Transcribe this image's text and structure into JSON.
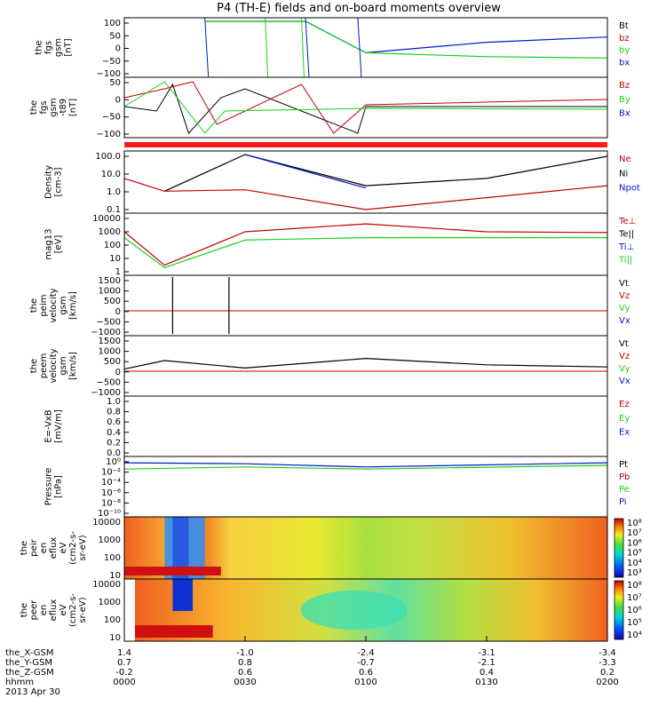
{
  "title": "P4 (TH-E) fields and on-board moments overview",
  "colors": {
    "black": "#000000",
    "red": "#c00000",
    "green": "#18d018",
    "blue": "#0018c8",
    "band": "#ff1a1a"
  },
  "panels": [
    {
      "id": "fgs",
      "ylabel": [
        "the",
        "fgs",
        "gsm",
        "[nT]"
      ],
      "ticks": [
        "100",
        "50",
        "0",
        "−50",
        "−100"
      ],
      "legend": [
        "Bt",
        "bz",
        "by",
        "bx"
      ],
      "legend_colors": [
        "black",
        "red",
        "green",
        "blue"
      ]
    },
    {
      "id": "fgs_t89",
      "ylabel": [
        "the",
        "fgs",
        "gsm",
        "-t89",
        "[nT]"
      ],
      "ticks": [
        "50",
        "0",
        "−50",
        "−100"
      ],
      "legend": [
        "Bz",
        "By",
        "Bx"
      ],
      "legend_colors": [
        "red",
        "green",
        "blue"
      ]
    },
    {
      "id": "density",
      "ylabel": [
        "Density",
        "[cm-3]"
      ],
      "ticks": [
        "100.0",
        "10.0",
        "1.0",
        "0.1"
      ],
      "legend": [
        "Ne",
        "Ni",
        "Npot"
      ],
      "legend_colors": [
        "red",
        "black",
        "blue"
      ]
    },
    {
      "id": "temp",
      "ylabel": [
        "mag13",
        "[eV]"
      ],
      "ticks": [
        "10000",
        "1000",
        "100",
        "10",
        "1"
      ],
      "legend": [
        "Te⊥",
        "Te||",
        "Ti⊥",
        "Ti||"
      ],
      "legend_colors": [
        "red",
        "black",
        "blue",
        "green"
      ]
    },
    {
      "id": "peim_v",
      "ylabel": [
        "the",
        "peim",
        "velocity",
        "gsm",
        "[km/s]"
      ],
      "ticks": [
        "1500",
        "1000",
        "500",
        "0",
        "−500",
        "−1000"
      ],
      "legend": [
        "Vt",
        "Vz",
        "Vy",
        "Vx"
      ],
      "legend_colors": [
        "black",
        "red",
        "green",
        "blue"
      ]
    },
    {
      "id": "peem_v",
      "ylabel": [
        "the",
        "peem",
        "velocity",
        "gsm",
        "[km/s]"
      ],
      "ticks": [
        "1500",
        "1000",
        "500",
        "0",
        "−500",
        "−1000"
      ],
      "legend": [
        "Vt",
        "Vz",
        "Vy",
        "Vx"
      ],
      "legend_colors": [
        "black",
        "red",
        "green",
        "blue"
      ]
    },
    {
      "id": "efield",
      "ylabel": [
        "E=-VxB",
        "[mV/m]"
      ],
      "ticks": [
        "1.0",
        "0.8",
        "0.6",
        "0.4",
        "0.2",
        "0.0"
      ],
      "legend": [
        "Ez",
        "Ey",
        "Ex"
      ],
      "legend_colors": [
        "red",
        "green",
        "blue"
      ]
    },
    {
      "id": "pressure",
      "ylabel": [
        "Pressure",
        "[nPa]"
      ],
      "ticks": [
        "10⁰",
        "10⁻²",
        "10⁻⁴",
        "10⁻⁶",
        "10⁻⁸",
        "10⁻¹⁰"
      ],
      "legend": [
        "Pt",
        "Pb",
        "Pe",
        "Pi"
      ],
      "legend_colors": [
        "black",
        "red",
        "green",
        "blue"
      ]
    },
    {
      "id": "peir",
      "ylabel": [
        "the",
        "peir",
        "en",
        "eflux",
        "eV",
        "(cm2-s-",
        "sr-eV)"
      ],
      "ticks": [
        "10000",
        "1000",
        "100",
        "10"
      ],
      "colorbar": [
        "10⁸",
        "10⁷",
        "10⁶",
        "10⁵",
        "10⁴",
        "10³"
      ]
    },
    {
      "id": "peer",
      "ylabel": [
        "the",
        "peer",
        "en",
        "eflux",
        "eV",
        "(cm2-s-",
        "sr-eV)"
      ],
      "ticks": [
        "10000",
        "1000",
        "100",
        "10"
      ],
      "colorbar": [
        "10⁸",
        "10⁷",
        "10⁶",
        "10⁵",
        "10⁴"
      ]
    }
  ],
  "ephemeris": {
    "labels": [
      "the_X-GSM",
      "the_Y-GSM",
      "the_Z-GSM",
      "hhmm",
      "2013 Apr 30"
    ],
    "x_gsm": [
      "1.4",
      "-1.0",
      "-2.4",
      "-3.1",
      "-3.4"
    ],
    "y_gsm": [
      "0.7",
      "0.8",
      "-0.7",
      "-2.1",
      "-3.3"
    ],
    "z_gsm": [
      "-0.2",
      "0.6",
      "0.6",
      "0.4",
      "0.2"
    ],
    "hhmm": [
      "0000",
      "0030",
      "0100",
      "0130",
      "0200"
    ]
  },
  "chart_data": {
    "type": "line",
    "title": "P4 (TH-E) fields and on-board moments overview",
    "xlabel": "hhmm",
    "x_ticks": [
      "0000",
      "0030",
      "0100",
      "0130",
      "0200"
    ],
    "x_range": [
      "0000",
      "0200"
    ],
    "panels": [
      {
        "name": "the fgs gsm [nT]",
        "ylim": [
          -100,
          100
        ],
        "series": [
          {
            "name": "bx",
            "x": [
              "0020",
              "0035",
              "0045",
              "0100",
              "0130",
              "0200"
            ],
            "values": [
              100,
              100,
              100,
              -20,
              20,
              40
            ]
          },
          {
            "name": "by",
            "x": [
              "0020",
              "0035",
              "0045",
              "0100",
              "0130",
              "0200"
            ],
            "values": [
              100,
              100,
              100,
              -20,
              -35,
              -40
            ]
          }
        ]
      },
      {
        "name": "Density [cm-3]",
        "ylim": [
          0.1,
          100
        ],
        "series": [
          {
            "name": "Ni",
            "x": [
              "0010",
              "0030",
              "0100",
              "0130",
              "0200"
            ],
            "values": [
              1,
              100,
              2,
              5,
              80
            ]
          },
          {
            "name": "Ne",
            "x": [
              "0000",
              "0010",
              "0030",
              "0100",
              "0200"
            ],
            "values": [
              5,
              1,
              1.2,
              0.1,
              2
            ]
          },
          {
            "name": "Npot",
            "x": [
              "0030",
              "0100"
            ],
            "values": [
              100,
              1.5
            ]
          }
        ]
      },
      {
        "name": "mag13 [eV]",
        "ylim": [
          1,
          10000
        ],
        "series": [
          {
            "name": "Te⊥",
            "x": [
              "0000",
              "0010",
              "0030",
              "0100",
              "0130",
              "0200"
            ],
            "values": [
              800,
              3,
              800,
              3000,
              800,
              700
            ]
          },
          {
            "name": "Ti||",
            "x": [
              "0000",
              "0010",
              "0030",
              "0100",
              "0130",
              "0200"
            ],
            "values": [
              300,
              2,
              200,
              300,
              300,
              300
            ]
          }
        ]
      },
      {
        "name": "the peem velocity gsm [km/s]",
        "ylim": [
          -1000,
          1500
        ],
        "series": [
          {
            "name": "Vt",
            "x": [
              "0000",
              "0010",
              "0030",
              "0100",
              "0130",
              "0200"
            ],
            "values": [
              100,
              500,
              150,
              600,
              300,
              200
            ]
          }
        ]
      },
      {
        "name": "Pressure [nPa]",
        "ylim": [
          1e-10,
          1
        ],
        "series": [
          {
            "name": "Pt",
            "x": [
              "0000",
              "0030",
              "0100",
              "0200"
            ],
            "values": [
              0.3,
              0.2,
              0.05,
              0.3
            ]
          },
          {
            "name": "Pe",
            "x": [
              "0000",
              "0030",
              "0100",
              "0200"
            ],
            "values": [
              0.02,
              0.05,
              0.02,
              0.1
            ]
          }
        ]
      }
    ]
  }
}
